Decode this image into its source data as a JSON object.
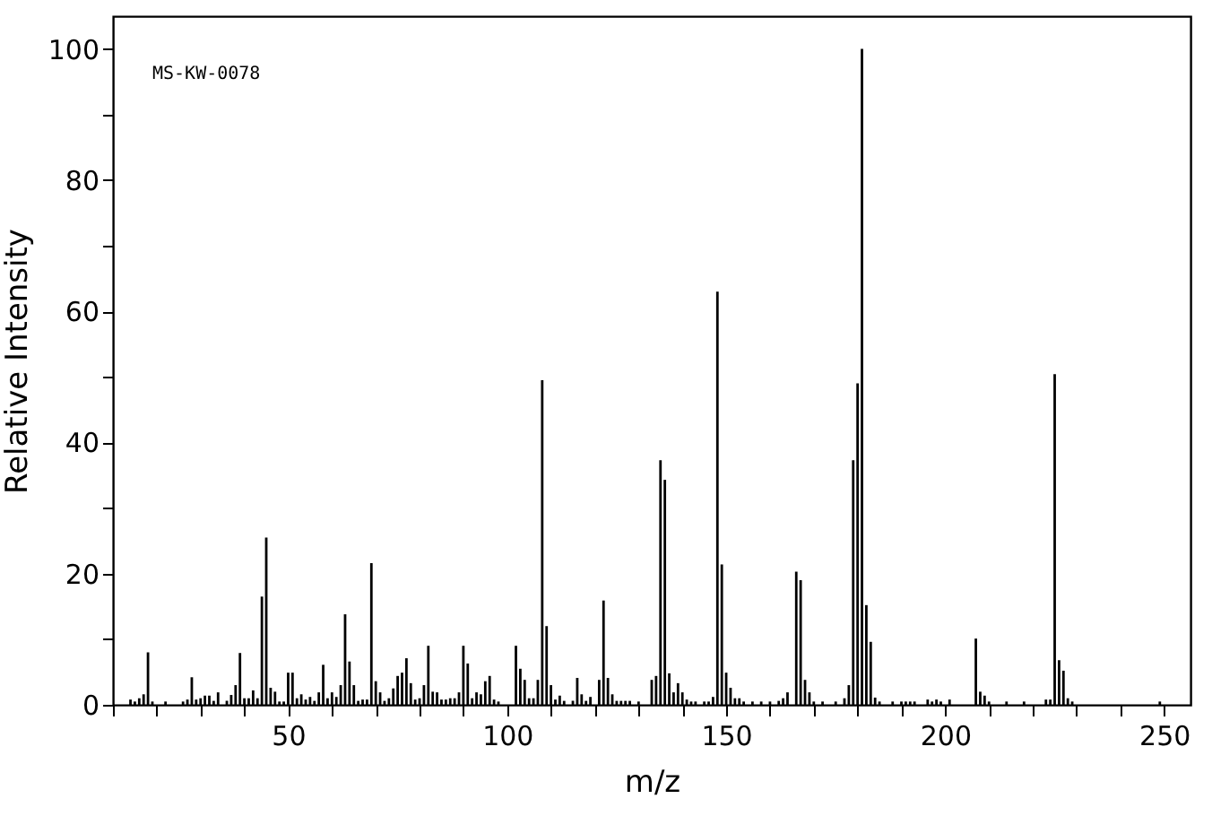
{
  "chart_data": {
    "type": "bar",
    "xlabel": "m/z",
    "ylabel": "Relative Intensity",
    "annotations": [
      "MS-KW-0078"
    ],
    "xlim": [
      10,
      256
    ],
    "ylim": [
      0,
      105
    ],
    "xticks": [
      {
        "value": 10,
        "label": null
      },
      {
        "value": 20,
        "label": null
      },
      {
        "value": 30,
        "label": null
      },
      {
        "value": 40,
        "label": null
      },
      50,
      {
        "value": 60,
        "label": null
      },
      {
        "value": 70,
        "label": null
      },
      {
        "value": 80,
        "label": null
      },
      {
        "value": 90,
        "label": null
      },
      100,
      {
        "value": 110,
        "label": null
      },
      {
        "value": 120,
        "label": null
      },
      {
        "value": 130,
        "label": null
      },
      {
        "value": 140,
        "label": null
      },
      150,
      {
        "value": 160,
        "label": null
      },
      {
        "value": 170,
        "label": null
      },
      {
        "value": 180,
        "label": null
      },
      {
        "value": 190,
        "label": null
      },
      200,
      {
        "value": 210,
        "label": null
      },
      {
        "value": 220,
        "label": null
      },
      {
        "value": 230,
        "label": null
      },
      {
        "value": 240,
        "label": null
      },
      250
    ],
    "yticks": [
      0,
      {
        "value": 10,
        "label": null
      },
      20,
      {
        "value": 30,
        "label": null
      },
      40,
      {
        "value": 50,
        "label": null
      },
      60,
      {
        "value": 70,
        "label": null
      },
      80,
      {
        "value": 90,
        "label": null
      },
      100
    ],
    "grid": false,
    "series": [
      {
        "color": "#000000",
        "x": [
          14,
          15,
          16,
          17,
          18,
          19,
          22,
          26,
          27,
          28,
          29,
          30,
          31,
          32,
          33,
          34,
          36,
          37,
          38,
          39,
          40,
          41,
          42,
          43,
          44,
          45,
          46,
          47,
          48,
          49,
          50,
          51,
          52,
          53,
          54,
          55,
          56,
          57,
          58,
          59,
          60,
          61,
          62,
          63,
          64,
          65,
          66,
          67,
          68,
          69,
          70,
          71,
          72,
          73,
          74,
          75,
          76,
          77,
          78,
          79,
          80,
          81,
          82,
          83,
          84,
          85,
          86,
          87,
          88,
          89,
          90,
          91,
          92,
          93,
          94,
          95,
          96,
          97,
          98,
          102,
          103,
          104,
          105,
          106,
          107,
          108,
          109,
          110,
          111,
          112,
          113,
          115,
          116,
          117,
          118,
          119,
          121,
          122,
          123,
          124,
          125,
          126,
          127,
          128,
          130,
          133,
          134,
          135,
          136,
          137,
          138,
          139,
          140,
          141,
          142,
          143,
          145,
          146,
          147,
          148,
          149,
          150,
          151,
          152,
          153,
          154,
          156,
          158,
          160,
          162,
          163,
          164,
          166,
          167,
          168,
          169,
          170,
          172,
          175,
          177,
          178,
          179,
          180,
          181,
          182,
          183,
          184,
          185,
          188,
          190,
          191,
          192,
          193,
          196,
          197,
          198,
          199,
          201,
          207,
          208,
          209,
          210,
          214,
          218,
          223,
          224,
          225,
          226,
          227,
          228,
          229,
          249
        ],
        "values": [
          0.8,
          0.5,
          1.0,
          1.6,
          8,
          0.5,
          0.5,
          0.5,
          0.8,
          4.2,
          0.8,
          1.0,
          1.4,
          1.4,
          0.6,
          1.9,
          0.6,
          1.5,
          3.0,
          7.9,
          1.0,
          1.0,
          2.2,
          1.0,
          16.5,
          25.5,
          2.6,
          2.0,
          0.5,
          0.5,
          4.9,
          4.9,
          1.0,
          1.6,
          0.8,
          1.2,
          0.6,
          1.9,
          6.1,
          1.0,
          1.9,
          1.2,
          3.0,
          13.8,
          6.6,
          3.0,
          0.6,
          0.8,
          0.8,
          21.6,
          3.6,
          1.9,
          0.6,
          1.0,
          2.5,
          4.4,
          4.9,
          7.1,
          3.3,
          0.8,
          1.0,
          3.0,
          9.0,
          2.0,
          1.9,
          0.8,
          0.8,
          1.0,
          1.0,
          1.9,
          9.0,
          6.3,
          1.0,
          1.9,
          1.6,
          3.6,
          4.4,
          0.8,
          0.5,
          9.0,
          5.5,
          3.8,
          1.0,
          1.0,
          3.8,
          49.5,
          12,
          3.0,
          0.8,
          1.4,
          0.6,
          0.6,
          4.1,
          1.6,
          0.6,
          1.2,
          3.8,
          15.9,
          4.1,
          1.6,
          0.6,
          0.6,
          0.6,
          0.6,
          0.5,
          3.8,
          4.4,
          37.3,
          34.3,
          4.8,
          1.9,
          3.3,
          1.9,
          0.8,
          0.5,
          0.5,
          0.5,
          0.5,
          1.2,
          63,
          21.4,
          4.9,
          2.6,
          1.0,
          1.0,
          0.5,
          0.5,
          0.5,
          0.5,
          0.6,
          1.0,
          1.9,
          20.3,
          19,
          3.8,
          1.9,
          0.5,
          0.5,
          0.5,
          1.0,
          3.0,
          37.3,
          49,
          100,
          15.2,
          9.6,
          1.1,
          0.5,
          0.5,
          0.5,
          0.5,
          0.5,
          0.5,
          0.8,
          0.5,
          0.8,
          0.5,
          0.8,
          10.1,
          2.0,
          1.4,
          0.5,
          0.5,
          0.5,
          0.8,
          0.8,
          50.4,
          6.8,
          5.2,
          1.0,
          0.5,
          0.5
        ]
      }
    ]
  }
}
